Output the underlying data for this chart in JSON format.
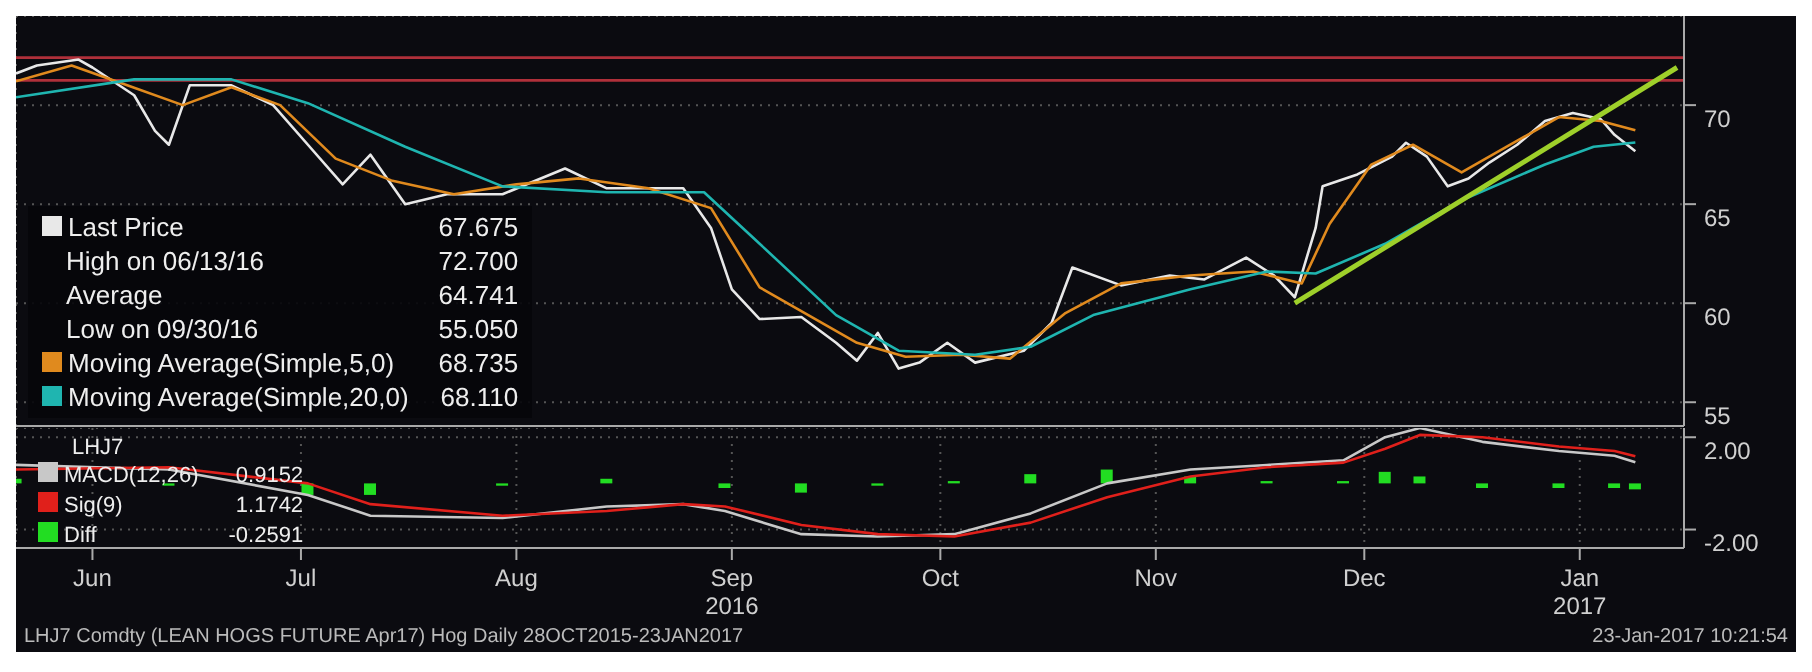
{
  "chart_data": [
    {
      "type": "line",
      "xlim": [
        "2016-06-04",
        "2017-01-30"
      ],
      "ylim": [
        53.8,
        74.5
      ],
      "yticks": [
        55,
        60,
        65,
        70
      ],
      "xticks": [
        {
          "value": "2016-06-15",
          "label": null
        },
        {
          "value": "2016-07-15",
          "label": null
        },
        {
          "value": "2016-08-15",
          "label": null
        },
        {
          "value": "2016-09-15",
          "label": null
        },
        {
          "value": "2016-10-15",
          "label": null
        },
        {
          "value": "2016-11-15",
          "label": null
        },
        {
          "value": "2016-12-15",
          "label": null
        },
        {
          "value": "2017-01-15",
          "label": null
        }
      ],
      "tick_labels": "y",
      "grid": true,
      "legend": "bottom left",
      "marker": "none",
      "line_style": "solid",
      "series": [
        {
          "name": "Last Price",
          "color": "#e8e8e8",
          "x": [
            "2016-06-04",
            "2016-06-07",
            "2016-06-13",
            "2016-06-15",
            "2016-06-21",
            "2016-06-24",
            "2016-06-26",
            "2016-06-29",
            "2016-07-05",
            "2016-07-11",
            "2016-07-16",
            "2016-07-21",
            "2016-07-25",
            "2016-07-30",
            "2016-08-05",
            "2016-08-13",
            "2016-08-22",
            "2016-08-28",
            "2016-09-08",
            "2016-09-12",
            "2016-09-15",
            "2016-09-19",
            "2016-09-25",
            "2016-09-30",
            "2016-10-03",
            "2016-10-06",
            "2016-10-09",
            "2016-10-12",
            "2016-10-16",
            "2016-10-20",
            "2016-10-27",
            "2016-10-31",
            "2016-11-03",
            "2016-11-10",
            "2016-11-17",
            "2016-11-22",
            "2016-11-28",
            "2016-12-02",
            "2016-12-05",
            "2016-12-08",
            "2016-12-09",
            "2016-12-14",
            "2016-12-19",
            "2016-12-21",
            "2016-12-24",
            "2016-12-27",
            "2016-12-30",
            "2017-01-02",
            "2017-01-06",
            "2017-01-10",
            "2017-01-14",
            "2017-01-18",
            "2017-01-20",
            "2017-01-23"
          ],
          "values": [
            71.6,
            72.0,
            72.3,
            71.9,
            70.5,
            68.7,
            68.0,
            71.0,
            71.0,
            70.0,
            68.0,
            66.0,
            67.5,
            65.0,
            65.5,
            65.5,
            66.8,
            65.8,
            65.8,
            63.8,
            60.7,
            59.2,
            59.3,
            58.0,
            57.1,
            58.5,
            56.7,
            57.0,
            58.0,
            57.0,
            57.6,
            59.0,
            61.8,
            60.9,
            61.4,
            61.2,
            62.3,
            61.4,
            60.3,
            63.8,
            65.9,
            66.5,
            67.4,
            68.1,
            67.4,
            65.9,
            66.3,
            67.1,
            68.0,
            69.2,
            69.6,
            69.3,
            68.5,
            67.675
          ]
        },
        {
          "name": "Moving Average(Simple,5,0)",
          "color": "#e08a1e",
          "x": [
            "2016-06-04",
            "2016-06-12",
            "2016-06-20",
            "2016-06-28",
            "2016-07-05",
            "2016-07-12",
            "2016-07-20",
            "2016-07-28",
            "2016-08-06",
            "2016-08-15",
            "2016-08-24",
            "2016-09-03",
            "2016-09-12",
            "2016-09-19",
            "2016-09-26",
            "2016-10-03",
            "2016-10-10",
            "2016-10-18",
            "2016-10-25",
            "2016-11-02",
            "2016-11-10",
            "2016-11-20",
            "2016-11-29",
            "2016-12-06",
            "2016-12-10",
            "2016-12-16",
            "2016-12-22",
            "2016-12-29",
            "2017-01-05",
            "2017-01-12",
            "2017-01-18",
            "2017-01-23"
          ],
          "values": [
            71.2,
            72.0,
            71.0,
            70.0,
            70.9,
            70.0,
            67.3,
            66.2,
            65.5,
            66.0,
            66.3,
            65.8,
            64.8,
            60.8,
            59.4,
            58.0,
            57.3,
            57.4,
            57.2,
            59.5,
            61.0,
            61.4,
            61.6,
            61.0,
            64.0,
            67.0,
            68.0,
            66.6,
            68.0,
            69.4,
            69.2,
            68.735
          ]
        },
        {
          "name": "Moving Average(Simple,20,0)",
          "color": "#1fb5b0",
          "x": [
            "2016-06-04",
            "2016-06-21",
            "2016-07-05",
            "2016-07-16",
            "2016-07-30",
            "2016-08-13",
            "2016-08-28",
            "2016-09-11",
            "2016-09-19",
            "2016-09-30",
            "2016-10-09",
            "2016-10-20",
            "2016-10-28",
            "2016-11-06",
            "2016-11-20",
            "2016-12-01",
            "2016-12-08",
            "2016-12-18",
            "2016-12-29",
            "2017-01-10",
            "2017-01-17",
            "2017-01-23"
          ],
          "values": [
            70.4,
            71.3,
            71.3,
            70.1,
            67.9,
            65.9,
            65.6,
            65.6,
            63.0,
            59.4,
            57.6,
            57.4,
            57.8,
            59.4,
            60.7,
            61.6,
            61.5,
            63.0,
            65.2,
            67.0,
            67.9,
            68.11
          ]
        },
        {
          "color": "#9ed02a",
          "x": [
            "2016-12-05",
            "2017-01-29"
          ],
          "values": [
            60.0,
            71.9
          ]
        }
      ],
      "ref_lines": [
        {
          "axis": "y",
          "value": 72.4,
          "color": "#b0303a"
        },
        {
          "axis": "y",
          "value": 71.25,
          "color": "#b0303a"
        }
      ],
      "annotations": [
        "67.675",
        "High on 06/13/16  72.700",
        "Average  64.741",
        "Low on 09/30/16  55.050",
        "68.735",
        "68.110"
      ]
    },
    {
      "type": "line",
      "legend_title": "LHJ7",
      "xlim": [
        "2016-06-04",
        "2017-01-30"
      ],
      "ylim": [
        -2.8,
        2.4
      ],
      "yticks": [
        {
          "value": 2,
          "label": "2.00"
        },
        {
          "value": -2,
          "label": "-2.00"
        }
      ],
      "xticks": [
        {
          "value": "2016-06-15",
          "label": "Jun"
        },
        {
          "value": "2016-07-15",
          "label": "Jul"
        },
        {
          "value": "2016-08-15",
          "label": "Aug"
        },
        {
          "value": "2016-09-15",
          "label": "Sep\n2016"
        },
        {
          "value": "2016-10-15",
          "label": "Oct"
        },
        {
          "value": "2016-11-15",
          "label": "Nov"
        },
        {
          "value": "2016-12-15",
          "label": "Dec"
        },
        {
          "value": "2017-01-15",
          "label": "Jan\n2017"
        }
      ],
      "grid": true,
      "legend": "left",
      "marker": "none",
      "x": [
        "2016-06-04",
        "2016-06-26",
        "2016-07-16",
        "2016-07-25",
        "2016-08-13",
        "2016-08-28",
        "2016-09-08",
        "2016-09-14",
        "2016-09-25",
        "2016-10-06",
        "2016-10-17",
        "2016-10-28",
        "2016-11-08",
        "2016-11-20",
        "2016-12-01",
        "2016-12-12",
        "2016-12-18",
        "2016-12-23",
        "2017-01-01",
        "2017-01-12",
        "2017-01-20",
        "2017-01-23"
      ],
      "series": [
        {
          "name": "MACD(12,26)",
          "color": "#c8c8c8",
          "values": [
            0.8,
            0.6,
            -0.5,
            -1.4,
            -1.5,
            -1.0,
            -0.9,
            -1.2,
            -2.2,
            -2.3,
            -2.2,
            -1.3,
            0.0,
            0.6,
            0.8,
            1.0,
            2.0,
            2.4,
            1.8,
            1.4,
            1.2,
            0.9152
          ]
        },
        {
          "name": "Sig(9)",
          "color": "#e0201b",
          "values": [
            0.6,
            0.7,
            0.0,
            -0.9,
            -1.4,
            -1.2,
            -0.9,
            -1.0,
            -1.8,
            -2.2,
            -2.3,
            -1.7,
            -0.6,
            0.3,
            0.7,
            0.9,
            1.5,
            2.1,
            2.0,
            1.6,
            1.4,
            1.1742
          ]
        },
        {
          "name": "Diff",
          "type": "bar",
          "color": "#22dd22",
          "values": [
            0.2,
            -0.1,
            -0.5,
            -0.5,
            -0.1,
            0.2,
            0.0,
            -0.2,
            -0.4,
            -0.1,
            0.1,
            0.4,
            0.6,
            0.3,
            0.1,
            0.1,
            0.5,
            0.3,
            -0.2,
            -0.2,
            -0.2,
            -0.2591
          ]
        }
      ],
      "annotations": [
        "0.9152",
        "1.1742",
        "-0.2591",
        "LHJ7 Comdty (LEAN HOGS FUTURE Apr17) Hog Daily 28OCT2015-23JAN2017",
        "23-Jan-2017 10:21:54"
      ]
    }
  ]
}
